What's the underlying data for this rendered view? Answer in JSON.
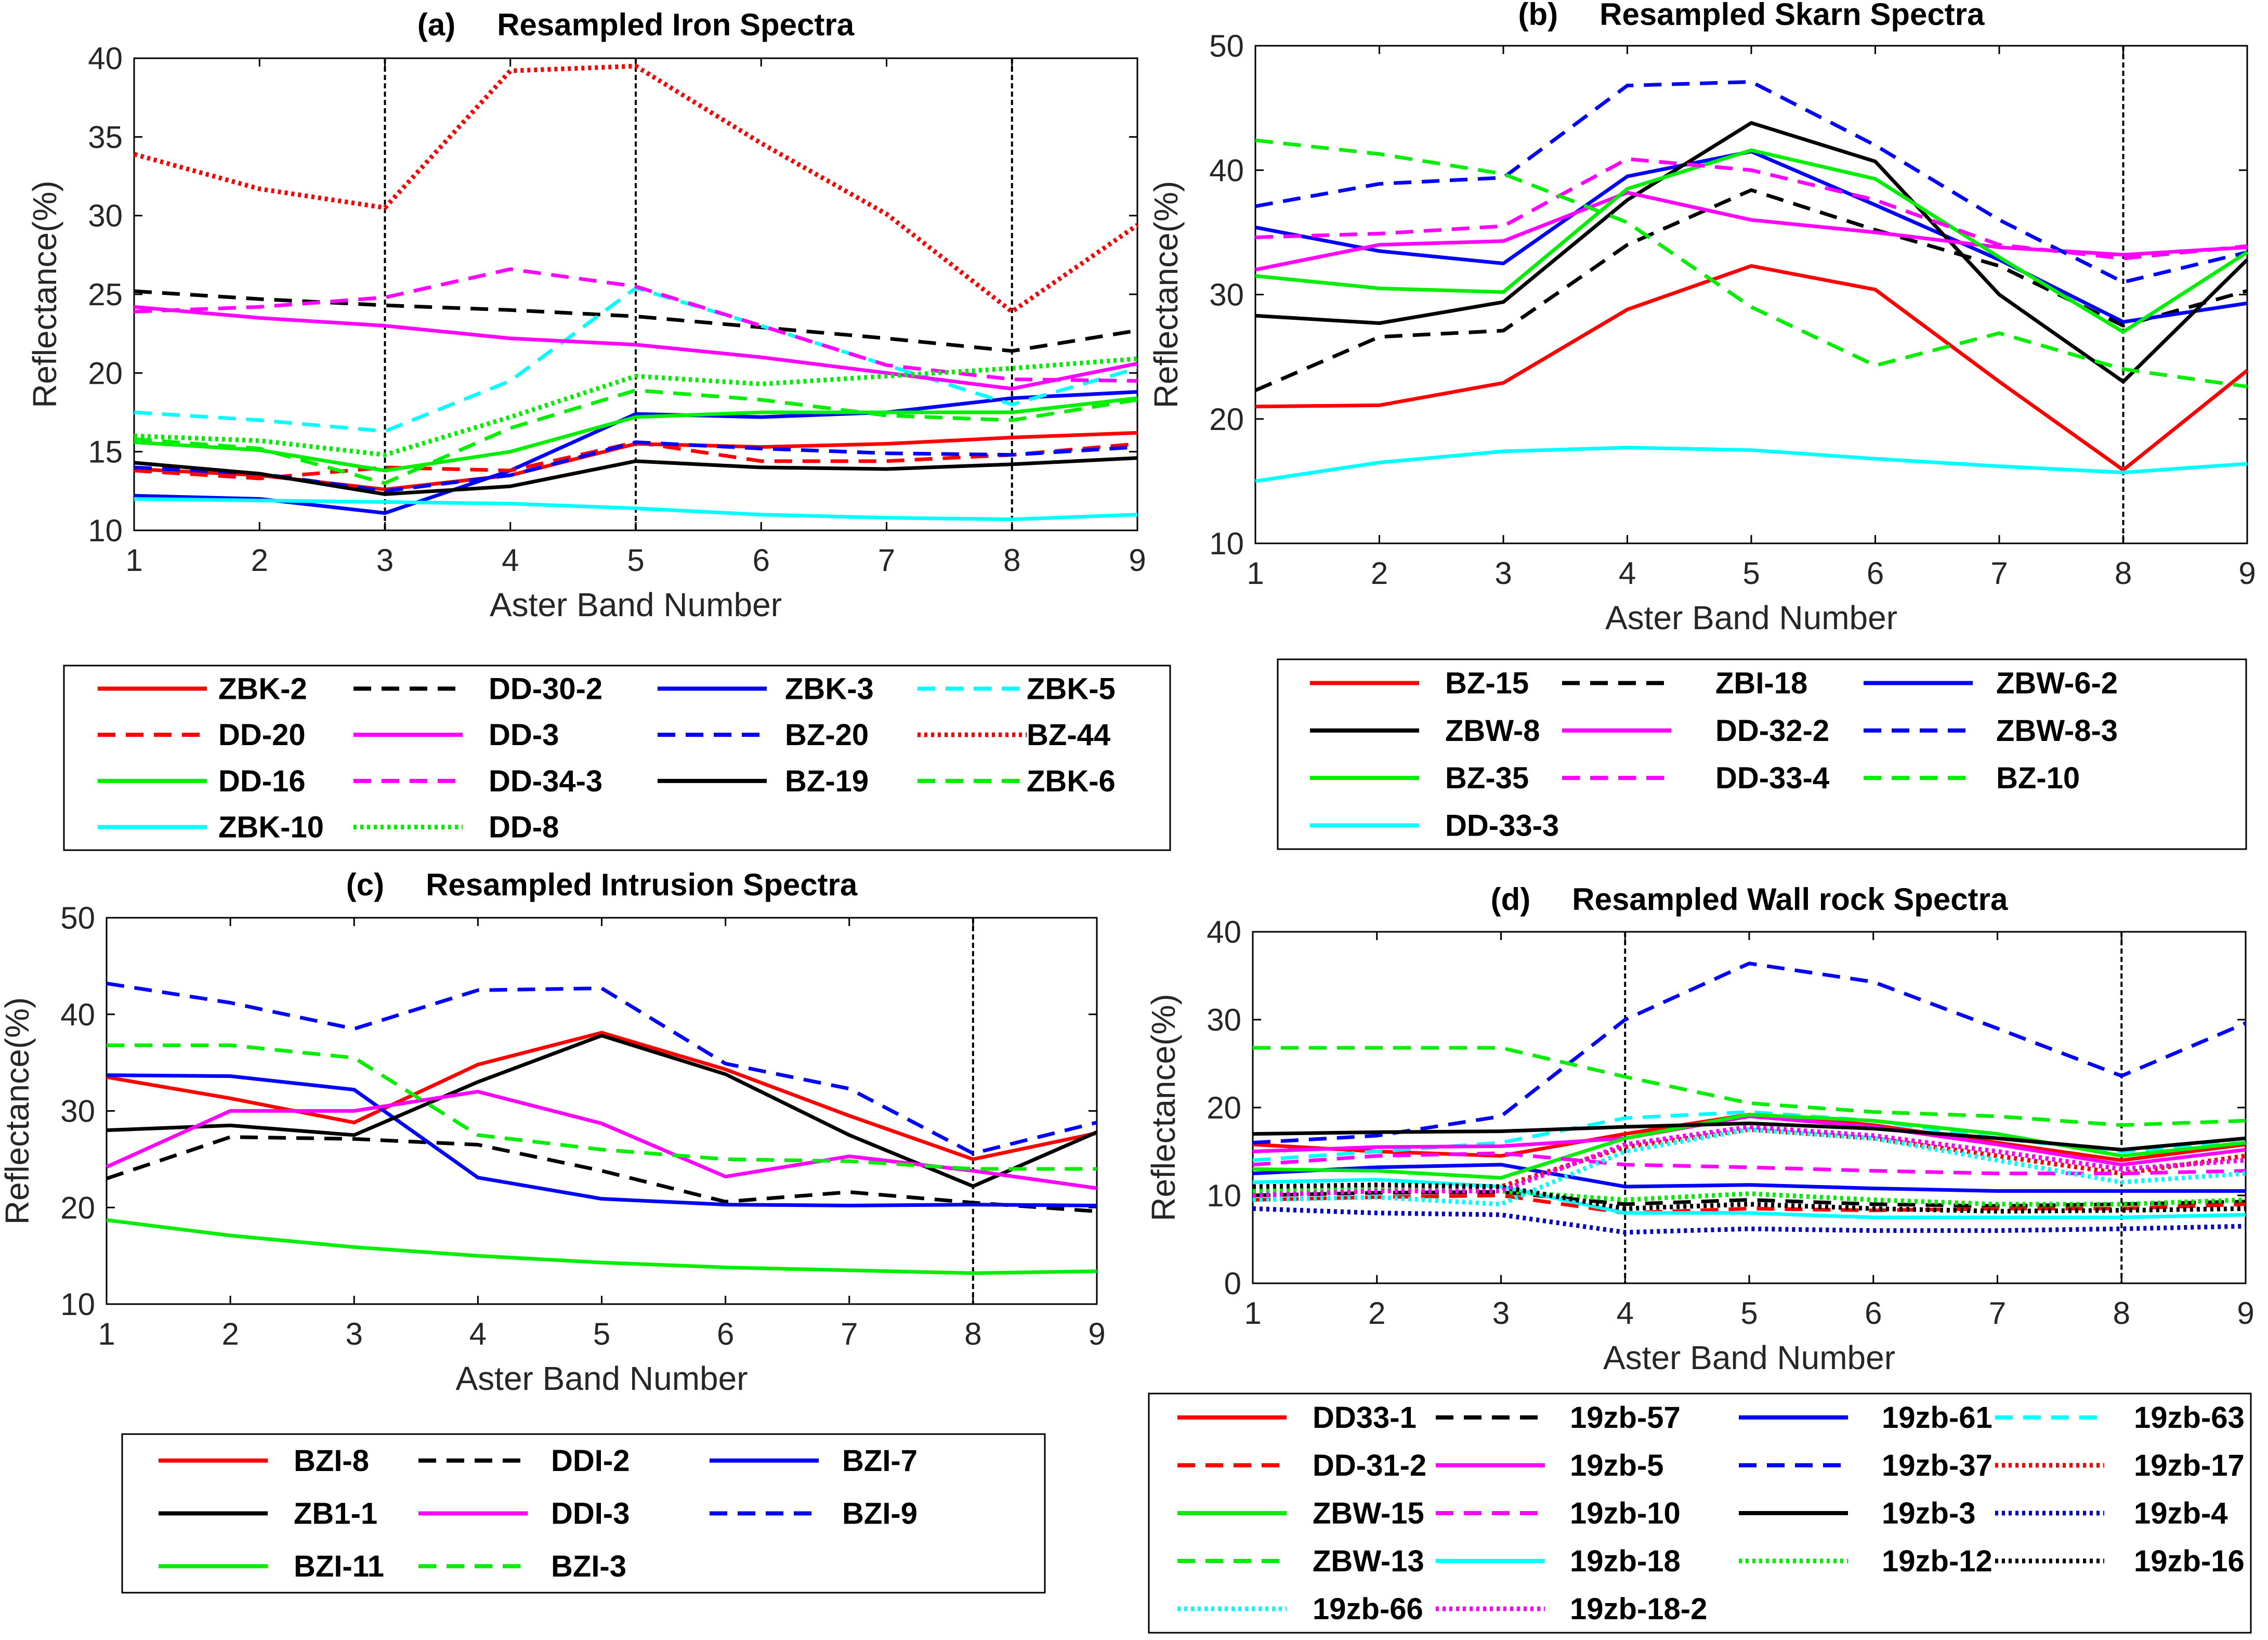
{
  "figure": {
    "panels": [
      {
        "letter": "(a)",
        "title": "Resampled Iron Spectra"
      },
      {
        "letter": "(b)",
        "title": "Resampled Skarn Spectra"
      },
      {
        "letter": "(c)",
        "title": "Resampled Intrusion Spectra"
      },
      {
        "letter": "(d)",
        "title": "Resampled Wall rock Spectra"
      }
    ]
  },
  "chart_data": [
    {
      "type": "line",
      "title": "Resampled Iron Spectra",
      "panel_label": "(a)",
      "xlabel": "Aster Band Number",
      "ylabel": "Reflectance(%)",
      "x": [
        1,
        2,
        3,
        4,
        5,
        6,
        7,
        8,
        9
      ],
      "xlim": [
        1,
        9
      ],
      "ylim": [
        10,
        40
      ],
      "xticks": [
        "1",
        "2",
        "3",
        "4",
        "5",
        "6",
        "7",
        "8",
        "9"
      ],
      "yticks": [
        "10",
        "15",
        "20",
        "25",
        "30",
        "35",
        "40"
      ],
      "vlines": [
        3,
        5,
        8
      ],
      "series": [
        {
          "name": "ZBK-2",
          "color": "#ff0000",
          "style": "solid",
          "values": [
            13.9,
            13.5,
            12.6,
            13.5,
            15.5,
            15.3,
            15.5,
            15.9,
            16.2
          ]
        },
        {
          "name": "DD-30-2",
          "color": "#000000",
          "style": "dashed",
          "values": [
            25.2,
            24.7,
            24.3,
            24.0,
            23.6,
            22.9,
            22.2,
            21.4,
            22.7
          ]
        },
        {
          "name": "ZBK-3",
          "color": "#0000ff",
          "style": "solid",
          "values": [
            12.2,
            12.0,
            11.1,
            13.8,
            17.4,
            17.2,
            17.5,
            18.4,
            18.8
          ]
        },
        {
          "name": "ZBK-5",
          "color": "#00ffff",
          "style": "dashed",
          "values": [
            17.5,
            17.0,
            16.3,
            19.5,
            25.4,
            23.0,
            20.5,
            18.0,
            20.3
          ]
        },
        {
          "name": "DD-20",
          "color": "#ff0000",
          "style": "dashed",
          "values": [
            13.8,
            13.3,
            14.0,
            13.8,
            15.6,
            14.4,
            14.4,
            14.8,
            15.5
          ]
        },
        {
          "name": "DD-3",
          "color": "#ff00ff",
          "style": "solid",
          "values": [
            24.2,
            23.5,
            23.0,
            22.2,
            21.8,
            21.0,
            20.0,
            19.0,
            20.6
          ]
        },
        {
          "name": "BZ-20",
          "color": "#0000ff",
          "style": "dashed",
          "values": [
            14.0,
            13.6,
            12.5,
            13.5,
            15.6,
            15.2,
            14.9,
            14.8,
            15.3
          ]
        },
        {
          "name": "BZ-44",
          "color": "#ff0000",
          "style": "dotted",
          "values": [
            33.9,
            31.7,
            30.5,
            39.2,
            39.5,
            34.6,
            30.1,
            23.9,
            29.4
          ]
        },
        {
          "name": "DD-16",
          "color": "#00ee00",
          "style": "solid",
          "values": [
            15.6,
            15.1,
            13.8,
            15.0,
            17.2,
            17.5,
            17.5,
            17.5,
            18.4
          ]
        },
        {
          "name": "DD-34-3",
          "color": "#ff00ff",
          "style": "dashed",
          "values": [
            23.9,
            24.2,
            24.8,
            26.6,
            25.5,
            23.0,
            20.5,
            19.6,
            19.5
          ]
        },
        {
          "name": "BZ-19",
          "color": "#000000",
          "style": "solid",
          "values": [
            14.3,
            13.6,
            12.3,
            12.8,
            14.4,
            14.0,
            13.9,
            14.2,
            14.6
          ]
        },
        {
          "name": "ZBK-6",
          "color": "#00ee00",
          "style": "dashed",
          "values": [
            15.8,
            15.2,
            13.0,
            16.5,
            18.9,
            18.3,
            17.3,
            17.0,
            18.3
          ]
        },
        {
          "name": "ZBK-10",
          "color": "#00ffff",
          "style": "solid",
          "values": [
            12.0,
            11.9,
            11.8,
            11.7,
            11.4,
            11.0,
            10.8,
            10.7,
            11.0
          ]
        },
        {
          "name": "DD-8",
          "color": "#00ee00",
          "style": "dotted",
          "values": [
            16.0,
            15.7,
            14.8,
            17.2,
            19.8,
            19.3,
            19.8,
            20.3,
            20.9
          ]
        }
      ]
    },
    {
      "type": "line",
      "title": "Resampled Skarn Spectra",
      "panel_label": "(b)",
      "xlabel": "Aster Band Number",
      "ylabel": "Reflectance(%)",
      "x": [
        1,
        2,
        3,
        4,
        5,
        6,
        7,
        8,
        9
      ],
      "xlim": [
        1,
        9
      ],
      "ylim": [
        10,
        50
      ],
      "xticks": [
        "1",
        "2",
        "3",
        "4",
        "5",
        "6",
        "7",
        "8",
        "9"
      ],
      "yticks": [
        "10",
        "20",
        "30",
        "40",
        "50"
      ],
      "vlines": [
        8
      ],
      "series": [
        {
          "name": "BZ-15",
          "color": "#ff0000",
          "style": "solid",
          "values": [
            21.0,
            21.1,
            22.9,
            28.8,
            32.3,
            30.4,
            23.0,
            15.9,
            23.9
          ]
        },
        {
          "name": "ZBI-18",
          "color": "#000000",
          "style": "dashed",
          "values": [
            22.3,
            26.6,
            27.1,
            34.0,
            38.4,
            35.2,
            32.3,
            27.5,
            30.3
          ]
        },
        {
          "name": "ZBW-6-2",
          "color": "#0000ff",
          "style": "solid",
          "values": [
            35.4,
            33.5,
            32.5,
            39.5,
            41.5,
            37.2,
            32.8,
            27.8,
            29.3
          ]
        },
        {
          "name": "ZBW-8",
          "color": "#000000",
          "style": "solid",
          "values": [
            28.3,
            27.7,
            29.4,
            37.6,
            43.8,
            40.7,
            30.0,
            23.0,
            32.8
          ]
        },
        {
          "name": "DD-32-2",
          "color": "#ff00ff",
          "style": "solid",
          "values": [
            32.0,
            34.0,
            34.3,
            38.2,
            36.0,
            35.0,
            33.8,
            33.2,
            33.8
          ]
        },
        {
          "name": "ZBW-8-3",
          "color": "#0000ff",
          "style": "dashed",
          "values": [
            37.1,
            38.9,
            39.4,
            46.8,
            47.1,
            42.0,
            36.0,
            31.0,
            33.4
          ]
        },
        {
          "name": "BZ-35",
          "color": "#00ee00",
          "style": "solid",
          "values": [
            31.5,
            30.5,
            30.2,
            38.5,
            41.6,
            39.3,
            33.0,
            27.0,
            33.4
          ]
        },
        {
          "name": "DD-33-4",
          "color": "#ff00ff",
          "style": "dashed",
          "values": [
            34.6,
            34.9,
            35.5,
            40.9,
            40.0,
            37.6,
            34.0,
            32.9,
            33.9
          ]
        },
        {
          "name": "BZ-10",
          "color": "#00ee00",
          "style": "dashed",
          "values": [
            42.4,
            41.3,
            39.7,
            35.8,
            29.0,
            24.3,
            26.9,
            24.0,
            22.6
          ]
        },
        {
          "name": "DD-33-3",
          "color": "#00ffff",
          "style": "solid",
          "values": [
            15.0,
            16.5,
            17.4,
            17.7,
            17.5,
            16.8,
            16.2,
            15.7,
            16.4
          ]
        }
      ]
    },
    {
      "type": "line",
      "title": "Resampled Intrusion Spectra",
      "panel_label": "(c)",
      "xlabel": "Aster Band Number",
      "ylabel": "Reflectance(%)",
      "x": [
        1,
        2,
        3,
        4,
        5,
        6,
        7,
        8,
        9
      ],
      "xlim": [
        1,
        9
      ],
      "ylim": [
        10,
        50
      ],
      "xticks": [
        "1",
        "2",
        "3",
        "4",
        "5",
        "6",
        "7",
        "8",
        "9"
      ],
      "yticks": [
        "10",
        "20",
        "30",
        "40",
        "50"
      ],
      "vlines": [
        8
      ],
      "series": [
        {
          "name": "BZI-8",
          "color": "#ff0000",
          "style": "solid",
          "values": [
            33.5,
            31.3,
            28.8,
            34.8,
            38.1,
            34.3,
            29.5,
            25.0,
            27.7
          ]
        },
        {
          "name": "DDI-2",
          "color": "#000000",
          "style": "dashed",
          "values": [
            23.0,
            27.3,
            27.1,
            26.5,
            23.8,
            20.6,
            21.6,
            20.5,
            19.6
          ]
        },
        {
          "name": "BZI-7",
          "color": "#0000ff",
          "style": "solid",
          "values": [
            33.7,
            33.6,
            32.2,
            23.1,
            20.9,
            20.3,
            20.2,
            20.3,
            20.2
          ]
        },
        {
          "name": "ZB1-1",
          "color": "#000000",
          "style": "solid",
          "values": [
            28.0,
            28.5,
            27.5,
            33.0,
            37.8,
            33.8,
            27.5,
            22.2,
            27.8
          ]
        },
        {
          "name": "DDI-3",
          "color": "#ff00ff",
          "style": "solid",
          "values": [
            24.2,
            30.0,
            30.0,
            32.0,
            28.7,
            23.2,
            25.3,
            23.8,
            22.0
          ]
        },
        {
          "name": "BZI-9",
          "color": "#0000ff",
          "style": "dashed",
          "values": [
            43.2,
            41.2,
            38.5,
            42.5,
            42.7,
            34.9,
            32.3,
            25.6,
            28.8
          ]
        },
        {
          "name": "BZI-11",
          "color": "#00ee00",
          "style": "solid",
          "values": [
            18.7,
            17.1,
            15.9,
            15.0,
            14.3,
            13.8,
            13.5,
            13.2,
            13.4
          ]
        },
        {
          "name": "BZI-3",
          "color": "#00ee00",
          "style": "dashed",
          "values": [
            36.8,
            36.8,
            35.5,
            27.5,
            26.0,
            25.0,
            24.8,
            24.0,
            24.0
          ]
        }
      ]
    },
    {
      "type": "line",
      "title": "Resampled Wall rock Spectra",
      "panel_label": "(d)",
      "xlabel": "Aster Band Number",
      "ylabel": "Reflectance(%)",
      "x": [
        1,
        2,
        3,
        4,
        5,
        6,
        7,
        8,
        9
      ],
      "xlim": [
        1,
        9
      ],
      "ylim": [
        0,
        40
      ],
      "xticks": [
        "1",
        "2",
        "3",
        "4",
        "5",
        "6",
        "7",
        "8",
        "9"
      ],
      "yticks": [
        "0",
        "10",
        "20",
        "30",
        "40"
      ],
      "vlines": [
        4,
        8
      ],
      "series": [
        {
          "name": "DD33-1",
          "color": "#ff0000",
          "style": "solid",
          "values": [
            15.8,
            15.0,
            14.5,
            17.0,
            19.2,
            18.0,
            16.0,
            14.0,
            15.8
          ]
        },
        {
          "name": "19zb-57",
          "color": "#000000",
          "style": "dashed",
          "values": [
            10.0,
            10.3,
            10.4,
            9.0,
            9.5,
            9.0,
            8.8,
            9.0,
            9.3
          ]
        },
        {
          "name": "19zb-61",
          "color": "#0000ff",
          "style": "solid",
          "values": [
            12.5,
            13.2,
            13.5,
            11.0,
            11.2,
            10.8,
            10.5,
            10.5,
            10.5
          ]
        },
        {
          "name": "19zb-63",
          "color": "#00ffff",
          "style": "dashed",
          "values": [
            14.0,
            15.0,
            16.0,
            18.8,
            19.5,
            18.5,
            16.5,
            15.0,
            16.0
          ]
        },
        {
          "name": "DD-31-2",
          "color": "#ff0000",
          "style": "dashed",
          "values": [
            9.5,
            9.8,
            10.0,
            8.0,
            8.5,
            8.3,
            8.5,
            8.5,
            9.0
          ]
        },
        {
          "name": "19zb-5",
          "color": "#ff00ff",
          "style": "solid",
          "values": [
            15.0,
            15.5,
            15.6,
            16.5,
            19.0,
            17.8,
            15.8,
            13.5,
            15.2
          ]
        },
        {
          "name": "19zb-37",
          "color": "#0000ff",
          "style": "dashed",
          "values": [
            16.0,
            16.8,
            19.0,
            30.0,
            36.4,
            34.3,
            29.0,
            23.6,
            29.6
          ]
        },
        {
          "name": "19zb-17",
          "color": "#ff0000",
          "style": "dotted",
          "values": [
            10.0,
            10.5,
            11.0,
            15.5,
            17.5,
            16.5,
            14.5,
            12.5,
            14.5
          ]
        },
        {
          "name": "ZBW-15",
          "color": "#00ee00",
          "style": "solid",
          "values": [
            13.0,
            12.8,
            12.0,
            16.5,
            19.2,
            18.5,
            17.0,
            14.5,
            16.0
          ]
        },
        {
          "name": "19zb-10",
          "color": "#ff00ff",
          "style": "dashed",
          "values": [
            13.5,
            14.5,
            14.8,
            13.5,
            13.2,
            12.8,
            12.5,
            12.5,
            12.8
          ]
        },
        {
          "name": "19zb-3",
          "color": "#000000",
          "style": "solid",
          "values": [
            17.0,
            17.2,
            17.3,
            17.8,
            18.2,
            17.6,
            16.5,
            15.2,
            16.5
          ]
        },
        {
          "name": "19zb-4",
          "color": "#0000cc",
          "style": "dotted",
          "values": [
            8.5,
            8.0,
            7.8,
            5.8,
            6.2,
            6.0,
            6.0,
            6.2,
            6.5
          ]
        },
        {
          "name": "ZBW-13",
          "color": "#00ee00",
          "style": "dashed",
          "values": [
            26.8,
            26.8,
            26.8,
            23.5,
            20.5,
            19.5,
            19.0,
            18.0,
            18.5
          ]
        },
        {
          "name": "19zb-18",
          "color": "#00ffff",
          "style": "solid",
          "values": [
            11.5,
            11.8,
            11.0,
            8.0,
            8.0,
            7.5,
            7.5,
            7.5,
            7.8
          ]
        },
        {
          "name": "19zb-12",
          "color": "#00ee00",
          "style": "dotted",
          "values": [
            10.5,
            10.8,
            10.5,
            9.5,
            10.2,
            9.5,
            9.0,
            9.0,
            9.5
          ]
        },
        {
          "name": "19zb-16",
          "color": "#000000",
          "style": "dotted",
          "values": [
            11.0,
            11.2,
            11.0,
            8.5,
            9.0,
            8.5,
            8.2,
            8.3,
            8.5
          ]
        },
        {
          "name": "19zb-66",
          "color": "#00ffff",
          "style": "dotted",
          "values": [
            9.5,
            9.8,
            9.0,
            15.0,
            17.5,
            16.5,
            14.0,
            11.5,
            12.5
          ]
        },
        {
          "name": "19zb-18-2",
          "color": "#ff00ff",
          "style": "dotted",
          "values": [
            10.0,
            10.5,
            10.5,
            15.8,
            17.8,
            16.8,
            15.0,
            13.0,
            14.0
          ]
        }
      ]
    }
  ]
}
